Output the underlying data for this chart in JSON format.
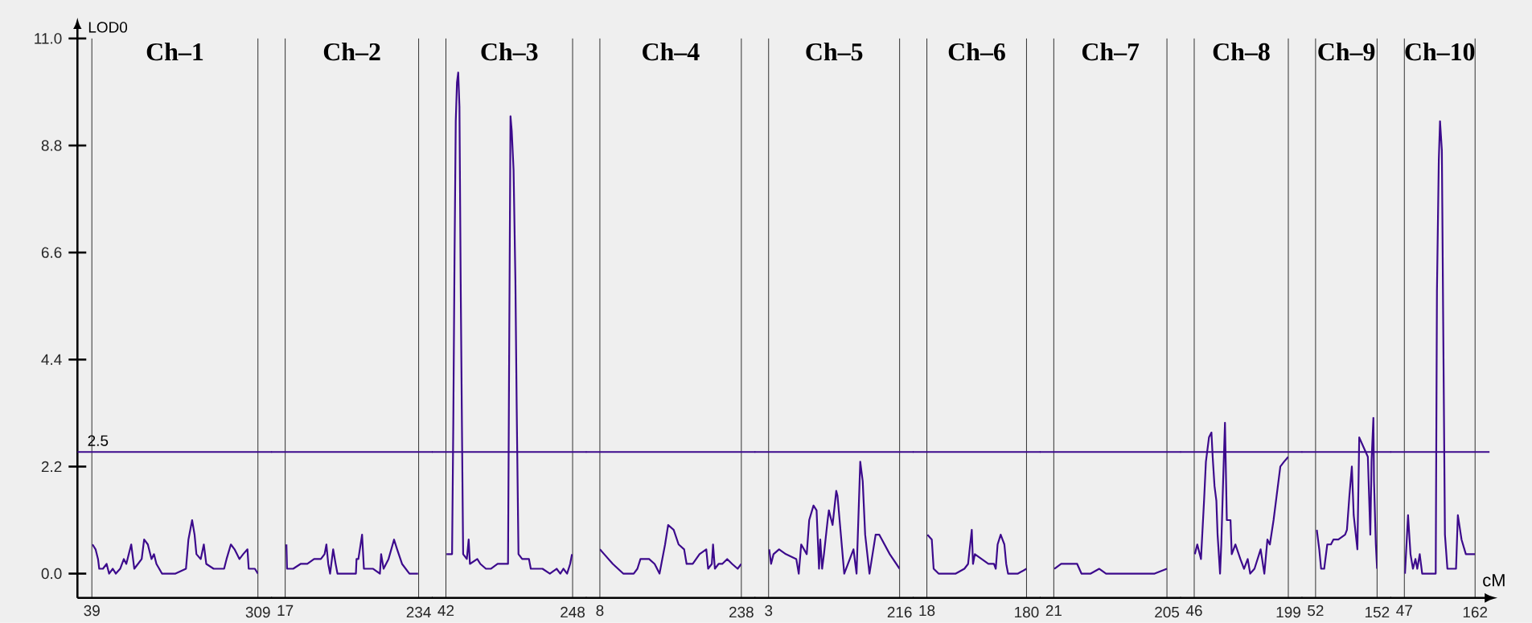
{
  "chart_data": [
    {
      "type": "line",
      "title": "Ch–1",
      "ylabel": "LOD0",
      "color": "#3c0a8c",
      "xlim": [
        39,
        309
      ],
      "xticks": [
        39,
        309
      ],
      "ylim": [
        -0.5,
        11
      ],
      "yticks": [
        {
          "value": 0,
          "label": "0.0"
        },
        {
          "value": 2.2,
          "label": "2.2"
        },
        {
          "value": 4.4,
          "label": "4.4"
        },
        {
          "value": 6.6,
          "label": "6.6"
        },
        {
          "value": 8.8,
          "label": "8.8"
        },
        {
          "value": 11,
          "label": "11.0"
        }
      ],
      "ref_lines": [
        {
          "axis": "y",
          "value": 2.5,
          "label": "2.5",
          "color": "#3c0a8c"
        }
      ],
      "x": [
        40,
        45,
        49,
        51,
        57,
        63,
        67,
        73,
        78,
        85,
        91,
        95,
        99,
        103,
        108,
        114,
        120,
        124,
        130,
        136,
        140,
        144,
        153,
        164,
        175,
        192,
        196,
        202,
        206,
        209,
        216,
        221,
        225,
        237,
        254,
        258,
        265,
        271,
        279,
        285,
        292,
        294,
        299,
        304,
        309
      ],
      "values": [
        0.6,
        0.5,
        0.3,
        0.1,
        0.1,
        0.2,
        0.0,
        0.1,
        0.0,
        0.1,
        0.3,
        0.2,
        0.4,
        0.6,
        0.1,
        0.2,
        0.3,
        0.7,
        0.6,
        0.3,
        0.4,
        0.2,
        0.0,
        0.0,
        0.0,
        0.1,
        0.7,
        1.1,
        0.8,
        0.4,
        0.3,
        0.6,
        0.2,
        0.1,
        0.1,
        0.3,
        0.6,
        0.5,
        0.3,
        0.4,
        0.5,
        0.1,
        0.1,
        0.1,
        0.0
      ]
    },
    {
      "type": "line",
      "title": "Ch–2",
      "color": "#3c0a8c",
      "xlim": [
        17,
        234
      ],
      "xticks": [
        17,
        234
      ],
      "ylim": [
        -0.5,
        11
      ],
      "tick_labels": "x",
      "ref_lines": [
        {
          "axis": "y",
          "value": 2.5,
          "color": "#3c0a8c"
        }
      ],
      "x": [
        19,
        20,
        30,
        42,
        47,
        53,
        64,
        75,
        81,
        84,
        87,
        90,
        95,
        99,
        102,
        132,
        133,
        136,
        142,
        145,
        160,
        171,
        173,
        177,
        185,
        194,
        199,
        207,
        219,
        233
      ],
      "values": [
        0.6,
        0.1,
        0.1,
        0.2,
        0.2,
        0.2,
        0.3,
        0.3,
        0.4,
        0.6,
        0.2,
        0.0,
        0.5,
        0.2,
        0.0,
        0.0,
        0.3,
        0.3,
        0.8,
        0.1,
        0.1,
        0.0,
        0.4,
        0.1,
        0.3,
        0.7,
        0.5,
        0.2,
        0.0,
        0.0
      ]
    },
    {
      "type": "line",
      "title": "Ch–3",
      "color": "#3c0a8c",
      "xlim": [
        42,
        248
      ],
      "xticks": [
        42,
        248
      ],
      "ylim": [
        -0.5,
        11
      ],
      "tick_labels": "x",
      "ref_lines": [
        {
          "axis": "y",
          "value": 2.5,
          "color": "#3c0a8c"
        }
      ],
      "x": [
        43,
        52,
        54,
        56,
        58,
        60,
        62,
        64,
        66,
        68,
        70,
        76,
        79,
        81,
        93,
        98,
        107,
        115,
        126,
        135,
        140,
        143,
        145,
        147,
        149,
        152,
        155,
        157,
        160,
        166,
        177,
        180,
        188,
        199,
        211,
        222,
        228,
        233,
        239,
        244,
        247
      ],
      "values": [
        0.4,
        0.4,
        3.1,
        6.5,
        9.3,
        10.1,
        10.3,
        9.6,
        6.0,
        3.1,
        0.4,
        0.3,
        0.7,
        0.2,
        0.3,
        0.2,
        0.1,
        0.1,
        0.2,
        0.2,
        0.2,
        0.2,
        4.9,
        9.4,
        9.1,
        8.3,
        6.0,
        3.5,
        0.4,
        0.3,
        0.3,
        0.1,
        0.1,
        0.1,
        0.0,
        0.1,
        0.0,
        0.1,
        0.0,
        0.2,
        0.4
      ]
    },
    {
      "type": "line",
      "title": "Ch–4",
      "color": "#3c0a8c",
      "xlim": [
        8,
        238
      ],
      "xticks": [
        8,
        238
      ],
      "ylim": [
        -0.5,
        11
      ],
      "tick_labels": "x",
      "ref_lines": [
        {
          "axis": "y",
          "value": 2.5,
          "color": "#3c0a8c"
        }
      ],
      "x": [
        8,
        15,
        29,
        46,
        63,
        69,
        74,
        88,
        97,
        105,
        114,
        119,
        128,
        136,
        145,
        149,
        159,
        170,
        181,
        184,
        190,
        192,
        195,
        201,
        207,
        215,
        223,
        232,
        238
      ],
      "values": [
        0.5,
        0.4,
        0.2,
        0.0,
        0.0,
        0.1,
        0.3,
        0.3,
        0.2,
        0.0,
        0.6,
        1.0,
        0.9,
        0.6,
        0.5,
        0.2,
        0.2,
        0.4,
        0.5,
        0.1,
        0.2,
        0.6,
        0.1,
        0.2,
        0.2,
        0.3,
        0.2,
        0.1,
        0.2
      ]
    },
    {
      "type": "line",
      "title": "Ch–5",
      "color": "#3c0a8c",
      "xlim": [
        3,
        216
      ],
      "xticks": [
        3,
        216
      ],
      "ylim": [
        -0.5,
        11
      ],
      "tick_labels": "x",
      "ref_lines": [
        {
          "axis": "y",
          "value": 2.5,
          "color": "#3c0a8c"
        }
      ],
      "x": [
        4,
        7,
        11,
        20,
        31,
        48,
        52,
        56,
        65,
        69,
        76,
        81,
        85,
        87,
        90,
        93,
        99,
        101,
        107,
        113,
        115,
        126,
        141,
        146,
        152,
        156,
        160,
        167,
        177,
        183,
        200,
        216
      ],
      "values": [
        0.5,
        0.2,
        0.4,
        0.5,
        0.4,
        0.3,
        0.0,
        0.6,
        0.4,
        1.1,
        1.4,
        1.3,
        0.1,
        0.7,
        0.1,
        0.4,
        1.1,
        1.3,
        1.0,
        1.7,
        1.6,
        0.0,
        0.5,
        0.0,
        2.3,
        1.9,
        0.8,
        0.0,
        0.8,
        0.8,
        0.4,
        0.1
      ]
    },
    {
      "type": "line",
      "title": "Ch–6",
      "color": "#3c0a8c",
      "xlim": [
        18,
        180
      ],
      "xticks": [
        18,
        180
      ],
      "ylim": [
        -0.5,
        11
      ],
      "tick_labels": "x",
      "ref_lines": [
        {
          "axis": "y",
          "value": 2.5,
          "color": "#3c0a8c"
        }
      ],
      "x": [
        19,
        26,
        29,
        37,
        48,
        65,
        79,
        85,
        91,
        93,
        96,
        107,
        118,
        127,
        130,
        133,
        138,
        144,
        147,
        150,
        166,
        180
      ],
      "values": [
        0.8,
        0.7,
        0.1,
        0.0,
        0.0,
        0.0,
        0.1,
        0.2,
        0.9,
        0.2,
        0.4,
        0.3,
        0.2,
        0.2,
        0.1,
        0.6,
        0.8,
        0.6,
        0.2,
        0.0,
        0.0,
        0.1
      ]
    },
    {
      "type": "line",
      "title": "Ch–7",
      "color": "#3c0a8c",
      "xlim": [
        21,
        205
      ],
      "xticks": [
        21,
        205
      ],
      "ylim": [
        -0.5,
        11
      ],
      "tick_labels": "x",
      "ref_lines": [
        {
          "axis": "y",
          "value": 2.5,
          "color": "#3c0a8c"
        }
      ],
      "x": [
        22,
        33,
        45,
        59,
        66,
        81,
        95,
        106,
        140,
        174,
        185,
        205
      ],
      "values": [
        0.1,
        0.2,
        0.2,
        0.2,
        0.0,
        0.0,
        0.1,
        0.0,
        0.0,
        0.0,
        0.0,
        0.1
      ]
    },
    {
      "type": "line",
      "title": "Ch–8",
      "color": "#3c0a8c",
      "xlim": [
        46,
        199
      ],
      "xticks": [
        46,
        199
      ],
      "ylim": [
        -0.5,
        11
      ],
      "tick_labels": "x",
      "ref_lines": [
        {
          "axis": "y",
          "value": 2.5,
          "color": "#3c0a8c"
        }
      ],
      "x": [
        47,
        51,
        57,
        62,
        65,
        70,
        74,
        76,
        79,
        82,
        84,
        88,
        90,
        93,
        96,
        99,
        105,
        107,
        113,
        121,
        127,
        133,
        137,
        144,
        154,
        160,
        165,
        169,
        175,
        180,
        186,
        192,
        199
      ],
      "values": [
        0.4,
        0.6,
        0.3,
        1.5,
        2.3,
        2.8,
        2.9,
        2.4,
        1.8,
        1.5,
        0.8,
        0.0,
        0.6,
        1.9,
        3.1,
        1.1,
        1.1,
        0.4,
        0.6,
        0.3,
        0.1,
        0.3,
        0.0,
        0.1,
        0.5,
        0.0,
        0.7,
        0.6,
        1.1,
        1.6,
        2.2,
        2.3,
        2.4
      ]
    },
    {
      "type": "line",
      "title": "Ch–9",
      "color": "#3c0a8c",
      "xlim": [
        52,
        152
      ],
      "xticks": [
        52,
        152
      ],
      "ylim": [
        -0.5,
        11
      ],
      "tick_labels": "x",
      "ref_lines": [
        {
          "axis": "y",
          "value": 2.5,
          "color": "#3c0a8c"
        }
      ],
      "x": [
        54,
        58,
        61,
        66,
        71,
        77,
        81,
        89,
        100,
        103,
        107,
        111,
        114,
        120,
        123,
        130,
        137,
        141,
        143,
        146,
        147,
        150,
        152
      ],
      "values": [
        0.9,
        0.5,
        0.1,
        0.1,
        0.6,
        0.6,
        0.7,
        0.7,
        0.8,
        0.9,
        1.6,
        2.2,
        1.2,
        0.5,
        2.8,
        2.6,
        2.4,
        0.8,
        2.3,
        3.2,
        1.9,
        0.6,
        0.1
      ]
    },
    {
      "type": "line",
      "title": "Ch–10",
      "xlabel": "cM",
      "color": "#3c0a8c",
      "xlim": [
        47,
        162
      ],
      "xticks": [
        47,
        162
      ],
      "ylim": [
        -0.5,
        11
      ],
      "tick_labels": "x",
      "ref_lines": [
        {
          "axis": "y",
          "value": 2.5,
          "color": "#3c0a8c"
        }
      ],
      "x": [
        48,
        53,
        57,
        61,
        65,
        68,
        72,
        76,
        86,
        98,
        100,
        103,
        105,
        108,
        110,
        113,
        117,
        126,
        131,
        134,
        140,
        147,
        154,
        162
      ],
      "values": [
        0.0,
        1.2,
        0.4,
        0.1,
        0.3,
        0.1,
        0.4,
        0.0,
        0.0,
        0.0,
        5.8,
        8.5,
        9.3,
        8.7,
        5.4,
        0.8,
        0.1,
        0.1,
        0.1,
        1.2,
        0.7,
        0.4,
        0.4,
        0.4
      ]
    }
  ]
}
